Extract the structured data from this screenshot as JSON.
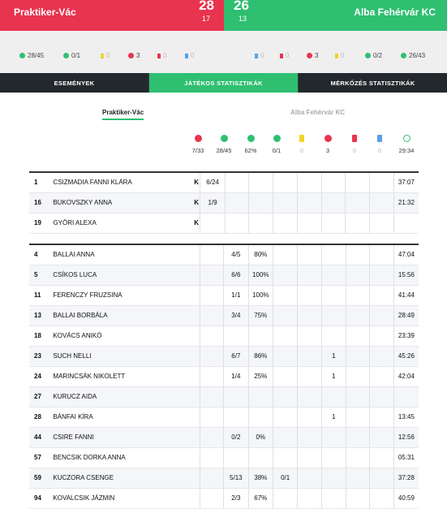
{
  "match": {
    "home": {
      "name": "Praktiker-Vác",
      "score": "28",
      "half": "17"
    },
    "away": {
      "name": "Alba Fehérvár KC",
      "score": "26",
      "half": "13"
    }
  },
  "home_stats": [
    {
      "icon": "ball-icon",
      "color": "#e8344e",
      "value": "28/45"
    },
    {
      "icon": "seven-meter-icon",
      "color": "#2fbf71",
      "value": "0/1"
    },
    {
      "icon": "yellow-card-icon",
      "color": "#f2d42b",
      "value": "0"
    },
    {
      "icon": "two-minutes-icon",
      "color": "#e8344e",
      "value": "3"
    },
    {
      "icon": "red-card-icon",
      "color": "#e8344e",
      "value": "0"
    },
    {
      "icon": "blue-card-icon",
      "color": "#5aa0e6",
      "value": "0"
    }
  ],
  "away_stats": [
    {
      "icon": "blue-card-icon",
      "color": "#5aa0e6",
      "value": "0"
    },
    {
      "icon": "red-card-icon",
      "color": "#e8344e",
      "value": "0"
    },
    {
      "icon": "two-minutes-icon",
      "color": "#e8344e",
      "value": "3"
    },
    {
      "icon": "yellow-card-icon",
      "color": "#f2d42b",
      "value": "0"
    },
    {
      "icon": "seven-meter-icon",
      "color": "#2fbf71",
      "value": "0/2"
    },
    {
      "icon": "ball-icon",
      "color": "#2fbf71",
      "value": "26/43"
    }
  ],
  "tabs": [
    "ESEMÉNYEK",
    "JÁTÉKOS STATISZTIKÁK",
    "MÉRKŐZÉS STATISZTIKÁK"
  ],
  "team_switch": {
    "home": "Praktiker-Vác",
    "away": "Alba Fehérvár KC"
  },
  "summary": [
    {
      "icon": "saves-icon",
      "value": "7/33"
    },
    {
      "icon": "ball-icon",
      "value": "28/45"
    },
    {
      "icon": "percent-icon",
      "value": "62%"
    },
    {
      "icon": "seven-meter-icon",
      "value": "0/1"
    },
    {
      "icon": "yellow-card-icon",
      "value": "0"
    },
    {
      "icon": "two-minutes-icon",
      "value": "3"
    },
    {
      "icon": "red-card-icon",
      "value": "0"
    },
    {
      "icon": "blue-card-icon",
      "value": "0"
    },
    {
      "icon": "clock-icon",
      "value": "29:34"
    }
  ],
  "goalkeepers": [
    {
      "num": "1",
      "name": "CSIZMADIA FANNI KLÁRA",
      "role": "K",
      "saves": "6/24",
      "goals": "",
      "pct": "",
      "sevenm": "",
      "y": "",
      "two": "",
      "r": "",
      "b": "",
      "time": "37:07"
    },
    {
      "num": "16",
      "name": "BUKOVSZKY ANNA",
      "role": "K",
      "saves": "1/9",
      "goals": "",
      "pct": "",
      "sevenm": "",
      "y": "",
      "two": "",
      "r": "",
      "b": "",
      "time": "21:32"
    },
    {
      "num": "19",
      "name": "GYÖRI ALEXA",
      "role": "K",
      "saves": "",
      "goals": "",
      "pct": "",
      "sevenm": "",
      "y": "",
      "two": "",
      "r": "",
      "b": "",
      "time": ""
    }
  ],
  "field_players": [
    {
      "num": "4",
      "name": "BALLAI ANNA",
      "saves": "",
      "goals": "4/5",
      "pct": "80%",
      "sevenm": "",
      "y": "",
      "two": "",
      "r": "",
      "b": "",
      "time": "47:04"
    },
    {
      "num": "5",
      "name": "CSÍKOS LUCA",
      "saves": "",
      "goals": "6/6",
      "pct": "100%",
      "sevenm": "",
      "y": "",
      "two": "",
      "r": "",
      "b": "",
      "time": "15:56"
    },
    {
      "num": "11",
      "name": "FERENCZY FRUZSINA",
      "saves": "",
      "goals": "1/1",
      "pct": "100%",
      "sevenm": "",
      "y": "",
      "two": "",
      "r": "",
      "b": "",
      "time": "41:44"
    },
    {
      "num": "13",
      "name": "BALLAI BORBÁLA",
      "saves": "",
      "goals": "3/4",
      "pct": "75%",
      "sevenm": "",
      "y": "",
      "two": "",
      "r": "",
      "b": "",
      "time": "28:49"
    },
    {
      "num": "18",
      "name": "KOVÁCS ANIKÓ",
      "saves": "",
      "goals": "",
      "pct": "",
      "sevenm": "",
      "y": "",
      "two": "",
      "r": "",
      "b": "",
      "time": "23:39"
    },
    {
      "num": "23",
      "name": "SUCH NELLI",
      "saves": "",
      "goals": "6/7",
      "pct": "86%",
      "sevenm": "",
      "y": "",
      "two": "1",
      "r": "",
      "b": "",
      "time": "45:26"
    },
    {
      "num": "24",
      "name": "MARINCSÁK NIKOLETT",
      "saves": "",
      "goals": "1/4",
      "pct": "25%",
      "sevenm": "",
      "y": "",
      "two": "1",
      "r": "",
      "b": "",
      "time": "42:04"
    },
    {
      "num": "27",
      "name": "KURUCZ AIDA",
      "saves": "",
      "goals": "",
      "pct": "",
      "sevenm": "",
      "y": "",
      "two": "",
      "r": "",
      "b": "",
      "time": ""
    },
    {
      "num": "28",
      "name": "BÁNFAI KÍRA",
      "saves": "",
      "goals": "",
      "pct": "",
      "sevenm": "",
      "y": "",
      "two": "1",
      "r": "",
      "b": "",
      "time": "13:45"
    },
    {
      "num": "44",
      "name": "CSIRE FANNI",
      "saves": "",
      "goals": "0/2",
      "pct": "0%",
      "sevenm": "",
      "y": "",
      "two": "",
      "r": "",
      "b": "",
      "time": "12:56"
    },
    {
      "num": "57",
      "name": "BENCSIK DORKA ANNA",
      "saves": "",
      "goals": "",
      "pct": "",
      "sevenm": "",
      "y": "",
      "two": "",
      "r": "",
      "b": "",
      "time": "05:31"
    },
    {
      "num": "59",
      "name": "KUCZORA CSENGE",
      "saves": "",
      "goals": "5/13",
      "pct": "38%",
      "sevenm": "0/1",
      "y": "",
      "two": "",
      "r": "",
      "b": "",
      "time": "37:28"
    },
    {
      "num": "94",
      "name": "KOVALCSIK JÁZMIN",
      "saves": "",
      "goals": "2/3",
      "pct": "67%",
      "sevenm": "",
      "y": "",
      "two": "",
      "r": "",
      "b": "",
      "time": "40:59"
    }
  ]
}
